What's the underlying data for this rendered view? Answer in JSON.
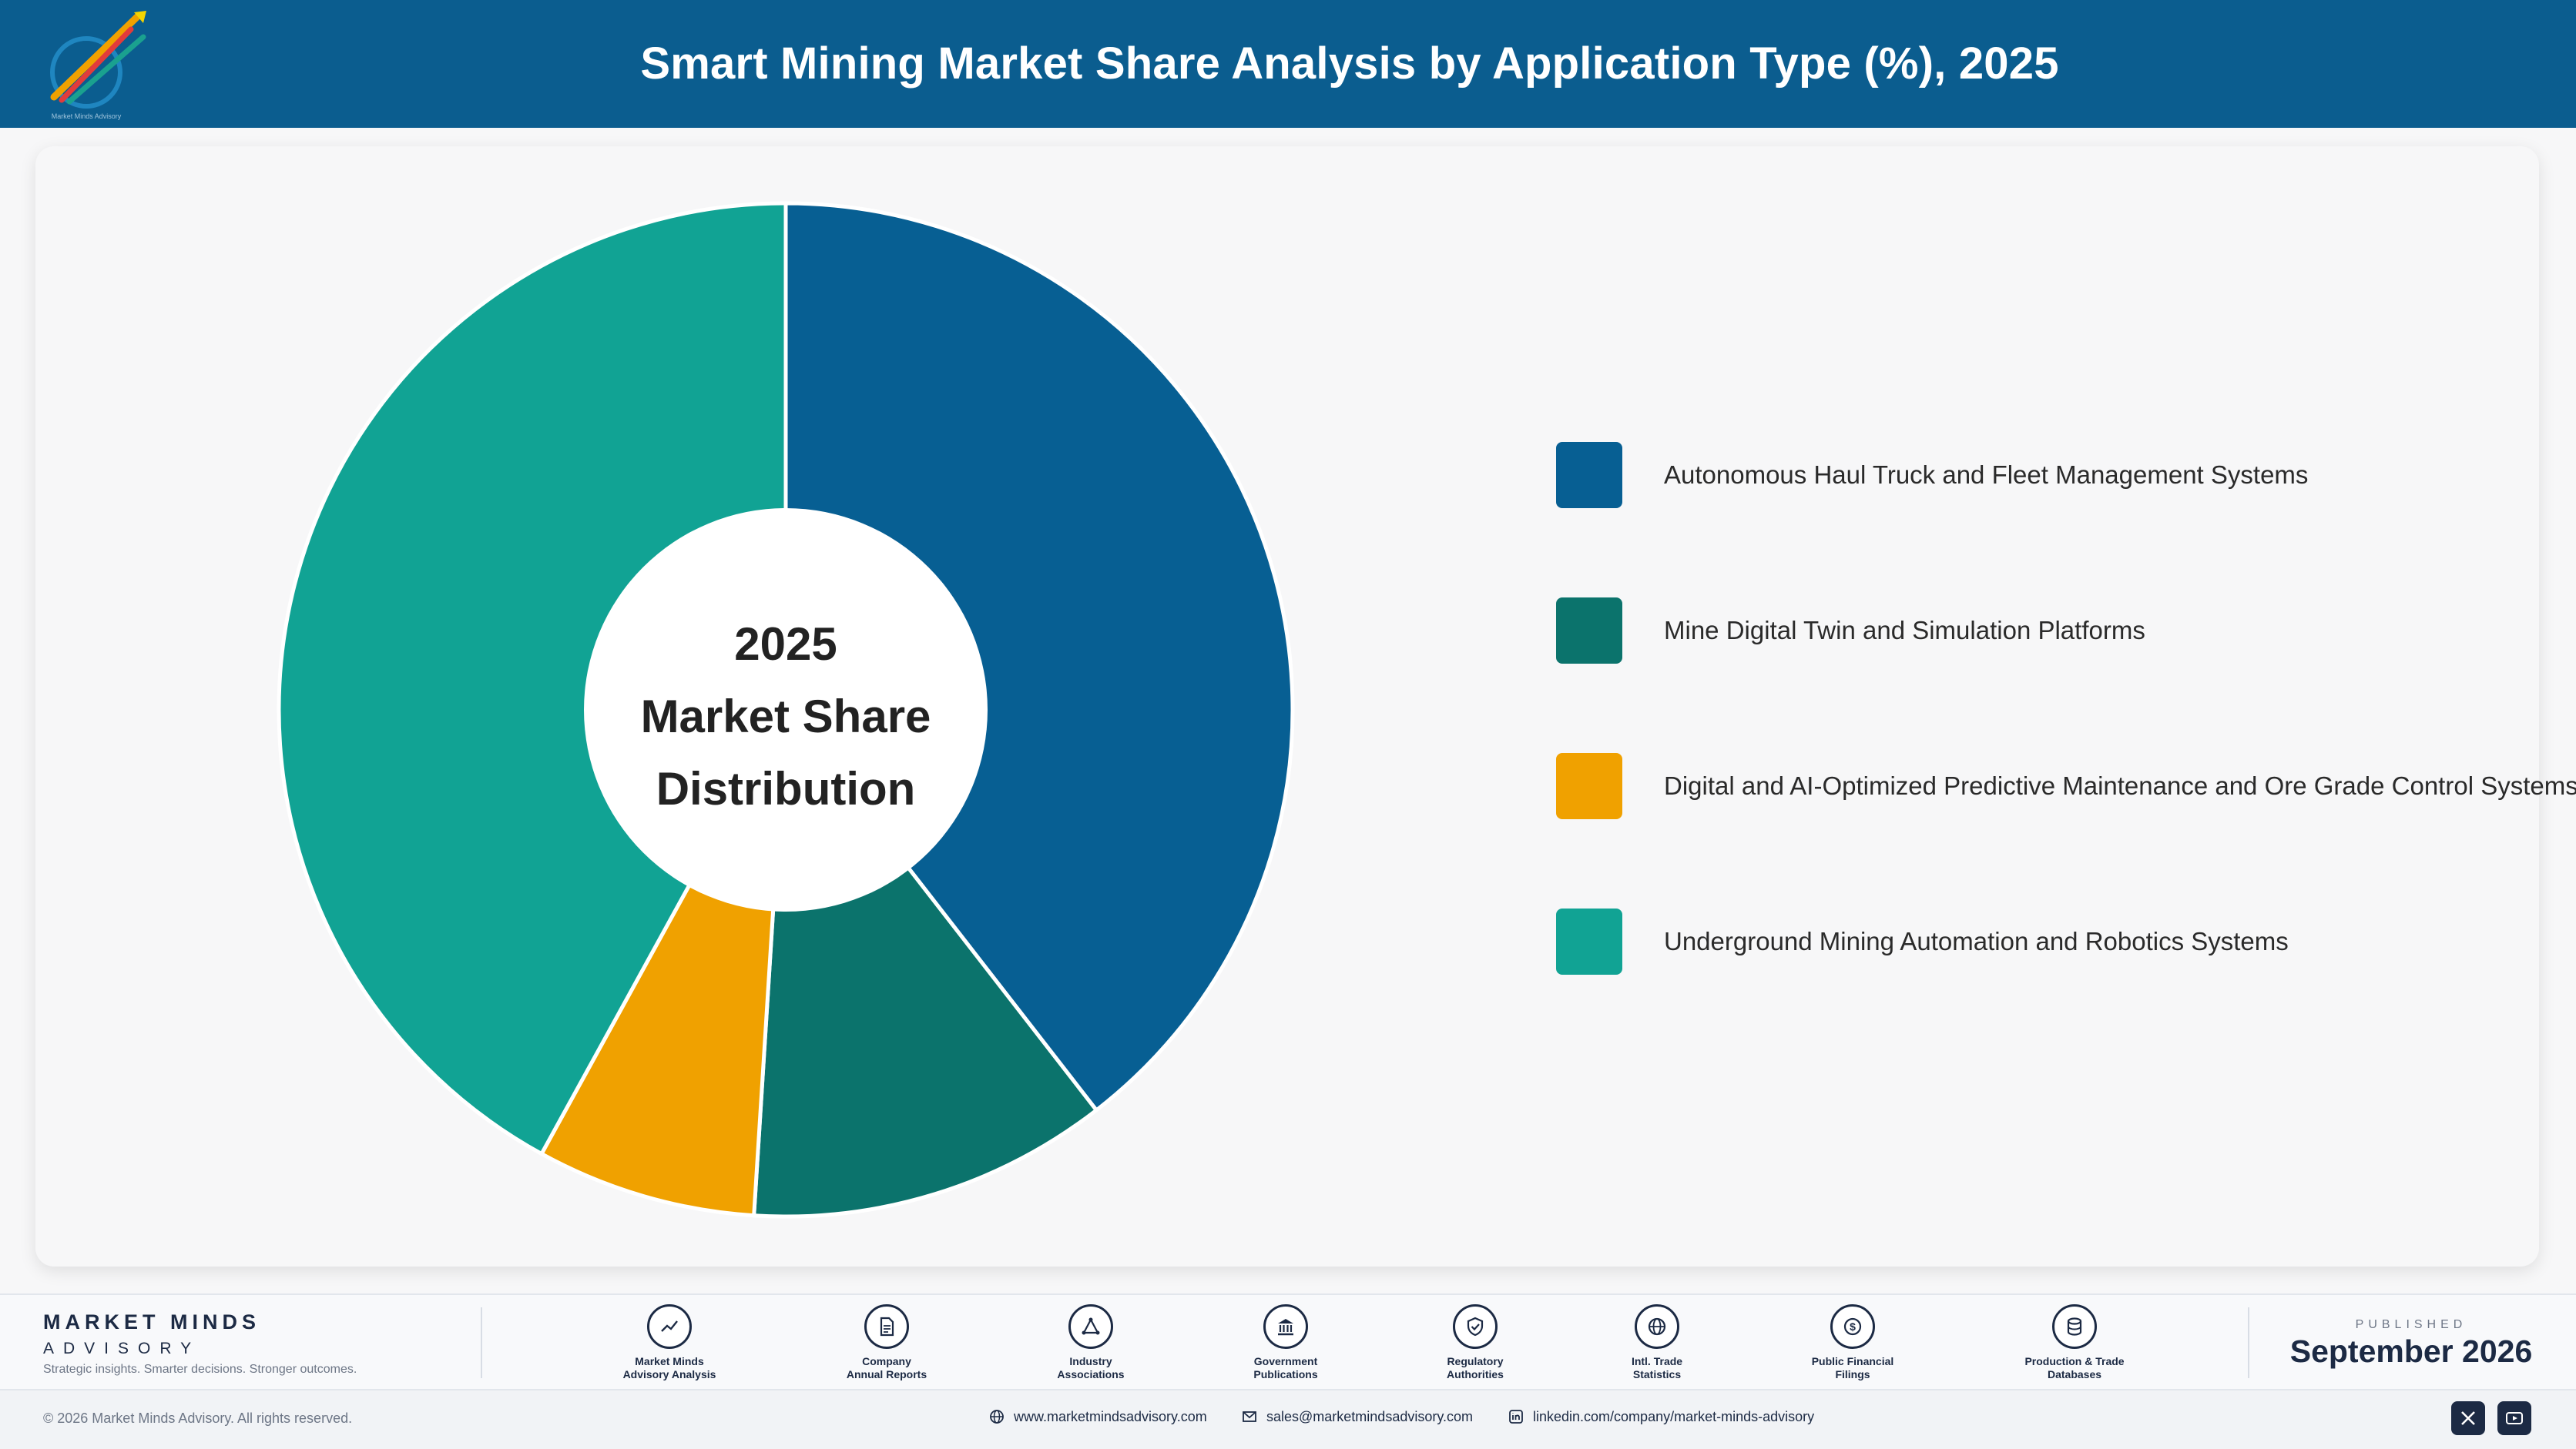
{
  "header": {
    "title": "Smart Mining Market Share Analysis by Application Type (%), 2025",
    "logo_caption": "Market Minds Advisory"
  },
  "chart_data": {
    "type": "pie",
    "title": "Smart Mining Market Share Analysis by Application Type (%), 2025",
    "center_label": [
      "2025",
      "Market Share",
      "Distribution"
    ],
    "unit": "%",
    "categories": [
      "Autonomous Haul Truck and Fleet Management Systems",
      "Mine Digital Twin and Simulation Platforms",
      "Digital and AI-Optimized Predictive Maintenance and Ore Grade Control Systems",
      "Underground Mining Automation and Robotics Systems"
    ],
    "values": [
      39.5,
      11.5,
      7.0,
      42.0
    ],
    "colors": [
      "#075f93",
      "#0b736c",
      "#f0a100",
      "#11a394"
    ],
    "legend_position": "right",
    "donut": true,
    "start_angle": "12 o'clock, clockwise"
  },
  "footer": {
    "brand_name": "MARKET MINDS",
    "brand_sub": "ADVISORY",
    "tagline": "Strategic insights. Smarter decisions. Stronger outcomes.",
    "sources": [
      {
        "label": "Market Minds\nAdvisory Analysis",
        "icon": "trend-line-icon"
      },
      {
        "label": "Company\nAnnual Reports",
        "icon": "document-icon"
      },
      {
        "label": "Industry\nAssociations",
        "icon": "network-icon"
      },
      {
        "label": "Government\nPublications",
        "icon": "government-building-icon"
      },
      {
        "label": "Regulatory\nAuthorities",
        "icon": "shield-check-icon"
      },
      {
        "label": "Intl. Trade\nStatistics",
        "icon": "globe-icon"
      },
      {
        "label": "Public Financial\nFilings",
        "icon": "dollar-coin-icon"
      },
      {
        "label": "Production & Trade\nDatabases",
        "icon": "database-icon"
      }
    ],
    "published_label": "PUBLISHED",
    "published_date": "September 2026",
    "copyright": "© 2026 Market Minds Advisory. All rights reserved.",
    "website": "www.marketmindsadvisory.com",
    "email": "sales@marketmindsadvisory.com",
    "linkedin": "linkedin.com/company/market-minds-advisory",
    "social": [
      "x-icon",
      "youtube-icon"
    ]
  }
}
